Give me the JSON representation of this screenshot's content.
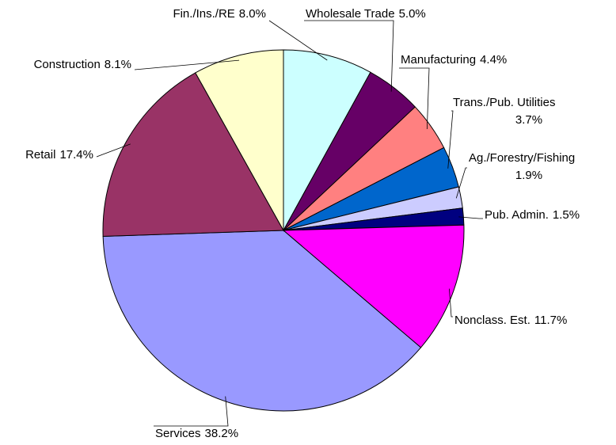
{
  "chart_data": {
    "type": "pie",
    "categories": [
      "Fin./Ins./RE",
      "Wholesale Trade",
      "Manufacturing",
      "Trans./Pub. Utilities",
      "Ag./Forestry/Fishing",
      "Pub. Admin.",
      "Nonclass. Est.",
      "Services",
      "Retail",
      "Construction"
    ],
    "values": [
      8.0,
      5.0,
      4.4,
      3.7,
      1.9,
      1.5,
      11.7,
      38.2,
      17.4,
      8.1
    ],
    "value_labels": [
      "8.0%",
      "5.0%",
      "4.4%",
      "3.7%",
      "1.9%",
      "1.5%",
      "11.7%",
      "38.2%",
      "17.4%",
      "8.1%"
    ],
    "colors": [
      "#ccffff",
      "#660066",
      "#ff8080",
      "#0066cc",
      "#ccccff",
      "#000080",
      "#ff00ff",
      "#9999ff",
      "#993366",
      "#ffffcc"
    ]
  }
}
